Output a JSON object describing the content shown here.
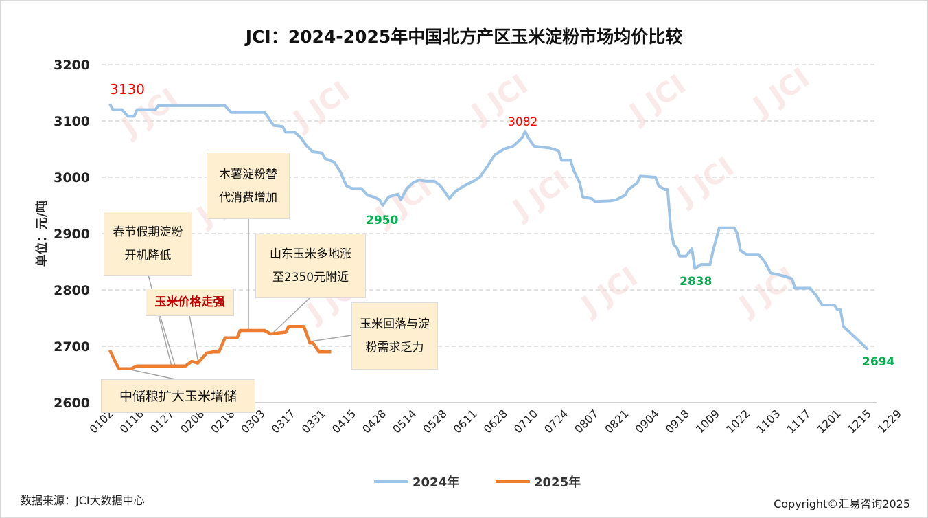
{
  "chart_data": {
    "type": "line",
    "title": "JCI：2024-2025年中国北方产区玉米淀粉市场均价比较",
    "ylabel": "单位：元/吨",
    "xlabel": "",
    "ylim": [
      2600,
      3200
    ],
    "yticks": [
      2600,
      2700,
      2800,
      2900,
      3000,
      3100,
      3200
    ],
    "xlim": [
      0,
      252
    ],
    "x_tick_labels": [
      "0102",
      "0116",
      "0127",
      "0208",
      "0218",
      "0303",
      "0317",
      "0331",
      "0415",
      "0428",
      "0514",
      "0528",
      "0611",
      "0628",
      "0710",
      "0724",
      "0807",
      "0821",
      "0904",
      "0918",
      "1009",
      "1022",
      "1103",
      "1117",
      "1201",
      "1215",
      "1229"
    ],
    "x_tick_step": 10,
    "grid": true,
    "legend_position": "bottom",
    "series": [
      {
        "name": "2024年",
        "color": "#9dc3e6",
        "points": [
          [
            0,
            3130
          ],
          [
            1,
            3120
          ],
          [
            4,
            3120
          ],
          [
            6,
            3108
          ],
          [
            8,
            3108
          ],
          [
            9,
            3120
          ],
          [
            15,
            3120
          ],
          [
            16,
            3127
          ],
          [
            38,
            3127
          ],
          [
            40,
            3115
          ],
          [
            51,
            3115
          ],
          [
            52,
            3108
          ],
          [
            54,
            3092
          ],
          [
            57,
            3090
          ],
          [
            58,
            3080
          ],
          [
            61,
            3080
          ],
          [
            63,
            3070
          ],
          [
            65,
            3055
          ],
          [
            67,
            3045
          ],
          [
            70,
            3043
          ],
          [
            71,
            3033
          ],
          [
            74,
            3027
          ],
          [
            76,
            3010
          ],
          [
            78,
            2985
          ],
          [
            80,
            2980
          ],
          [
            83,
            2980
          ],
          [
            85,
            2968
          ],
          [
            87,
            2965
          ],
          [
            89,
            2960
          ],
          [
            90,
            2950
          ],
          [
            92,
            2965
          ],
          [
            95,
            2970
          ],
          [
            96,
            2960
          ],
          [
            98,
            2980
          ],
          [
            100,
            2990
          ],
          [
            102,
            2995
          ],
          [
            104,
            2993
          ],
          [
            107,
            2993
          ],
          [
            109,
            2985
          ],
          [
            111,
            2970
          ],
          [
            112,
            2962
          ],
          [
            114,
            2975
          ],
          [
            117,
            2985
          ],
          [
            120,
            2993
          ],
          [
            122,
            3000
          ],
          [
            124,
            3015
          ],
          [
            127,
            3040
          ],
          [
            130,
            3050
          ],
          [
            133,
            3055
          ],
          [
            136,
            3070
          ],
          [
            137,
            3082
          ],
          [
            138,
            3070
          ],
          [
            140,
            3055
          ],
          [
            145,
            3052
          ],
          [
            148,
            3047
          ],
          [
            149,
            3030
          ],
          [
            152,
            3030
          ],
          [
            153,
            3012
          ],
          [
            155,
            2990
          ],
          [
            156,
            2965
          ],
          [
            159,
            2962
          ],
          [
            160,
            2957
          ],
          [
            165,
            2958
          ],
          [
            167,
            2960
          ],
          [
            170,
            2968
          ],
          [
            171,
            2978
          ],
          [
            174,
            2990
          ],
          [
            175,
            3002
          ],
          [
            180,
            3000
          ],
          [
            181,
            2985
          ],
          [
            183,
            2978
          ],
          [
            184,
            2978
          ],
          [
            185,
            2910
          ],
          [
            186,
            2880
          ],
          [
            187,
            2875
          ],
          [
            188,
            2860
          ],
          [
            190,
            2860
          ],
          [
            192,
            2873
          ],
          [
            193,
            2838
          ],
          [
            195,
            2845
          ],
          [
            198,
            2845
          ],
          [
            199,
            2870
          ],
          [
            201,
            2910
          ],
          [
            206,
            2910
          ],
          [
            207,
            2900
          ],
          [
            208,
            2870
          ],
          [
            210,
            2863
          ],
          [
            214,
            2863
          ],
          [
            216,
            2850
          ],
          [
            218,
            2830
          ],
          [
            222,
            2825
          ],
          [
            225,
            2820
          ],
          [
            226,
            2803
          ],
          [
            231,
            2803
          ],
          [
            233,
            2790
          ],
          [
            235,
            2773
          ],
          [
            239,
            2773
          ],
          [
            240,
            2765
          ],
          [
            241,
            2765
          ],
          [
            242,
            2735
          ],
          [
            245,
            2720
          ],
          [
            248,
            2705
          ],
          [
            250,
            2694
          ]
        ]
      },
      {
        "name": "2025年",
        "color": "#ed7d31",
        "points": [
          [
            0,
            2693
          ],
          [
            2,
            2670
          ],
          [
            3,
            2660
          ],
          [
            7,
            2660
          ],
          [
            9,
            2665
          ],
          [
            25,
            2665
          ],
          [
            27,
            2673
          ],
          [
            29,
            2670
          ],
          [
            32,
            2688
          ],
          [
            34,
            2690
          ],
          [
            36,
            2690
          ],
          [
            38,
            2715
          ],
          [
            42,
            2715
          ],
          [
            43,
            2728
          ],
          [
            51,
            2728
          ],
          [
            53,
            2722
          ],
          [
            58,
            2725
          ],
          [
            59,
            2735
          ],
          [
            64,
            2735
          ],
          [
            66,
            2706
          ],
          [
            67,
            2706
          ],
          [
            69,
            2690
          ],
          [
            73,
            2690
          ]
        ]
      }
    ],
    "data_labels": [
      {
        "text": "3130",
        "color": "#ff0000"
      },
      {
        "text": "3082",
        "color": "#ff0000"
      },
      {
        "text": "2950",
        "color": "#00b050"
      },
      {
        "text": "2838",
        "color": "#00b050"
      },
      {
        "text": "2694",
        "color": "#00b050"
      }
    ],
    "annotations": [
      "木薯淀粉替代消费增加",
      "春节假期淀粉开机降低",
      "山东玉米多地涨至2350元附近",
      "玉米价格走强",
      "玉米回落与淀粉需求乏力",
      "中储粮扩大玉米增储"
    ]
  },
  "annotation_lines": {
    "cassava": [
      "木薯淀粉替",
      "代消费增加"
    ],
    "spring": [
      "春节假期淀粉",
      "开机降低"
    ],
    "shandong": [
      "山东玉米多地涨",
      "至2350元附近"
    ],
    "corn_strong": "玉米价格走强",
    "corn_fall": [
      "玉米回落与淀",
      "粉需求乏力"
    ],
    "sinograin": "中储粮扩大玉米增储"
  },
  "source": "数据来源：JCI大数据中心",
  "copyright": "Copyright©汇易咨询2025"
}
